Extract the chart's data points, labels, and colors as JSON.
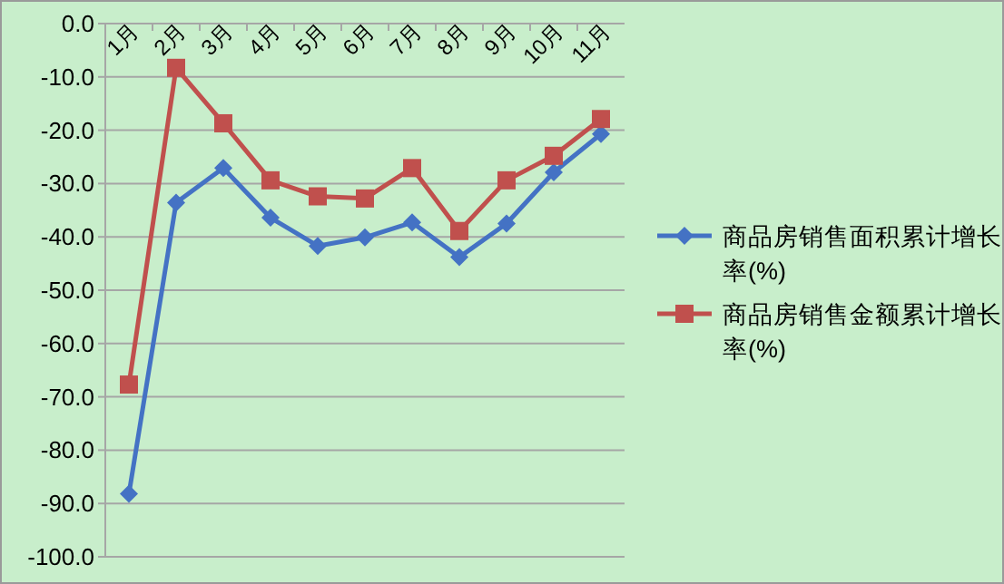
{
  "chart_data": {
    "type": "line",
    "categories": [
      "1月",
      "2月",
      "3月",
      "4月",
      "5月",
      "6月",
      "7月",
      "8月",
      "9月",
      "10月",
      "11月"
    ],
    "series": [
      {
        "name": "商品房销售面积累计增长率(%)",
        "color": "#4472c4",
        "marker": "diamond",
        "values": [
          -88.2,
          -33.6,
          -27.1,
          -36.4,
          -41.7,
          -40.1,
          -37.3,
          -43.8,
          -37.5,
          -27.9,
          -20.7
        ]
      },
      {
        "name": "商品房销售金额累计增长率(%)",
        "color": "#c0504d",
        "marker": "square",
        "values": [
          -67.7,
          -8.3,
          -18.7,
          -29.4,
          -32.4,
          -32.8,
          -27.1,
          -38.9,
          -29.4,
          -24.8,
          -17.9
        ]
      }
    ],
    "ylim": [
      -100,
      0
    ],
    "yticks": [
      {
        "value": 0,
        "label": "0.0"
      },
      {
        "value": -10,
        "label": "-10.0"
      },
      {
        "value": -20,
        "label": "-20.0"
      },
      {
        "value": -30,
        "label": "-30.0"
      },
      {
        "value": -40,
        "label": "-40.0"
      },
      {
        "value": -50,
        "label": "-50.0"
      },
      {
        "value": -60,
        "label": "-60.0"
      },
      {
        "value": -70,
        "label": "-70.0"
      },
      {
        "value": -80,
        "label": "-80.0"
      },
      {
        "value": -90,
        "label": "-90.0"
      },
      {
        "value": -100,
        "label": "-100.0"
      }
    ],
    "grid": "y",
    "legend": "right"
  }
}
